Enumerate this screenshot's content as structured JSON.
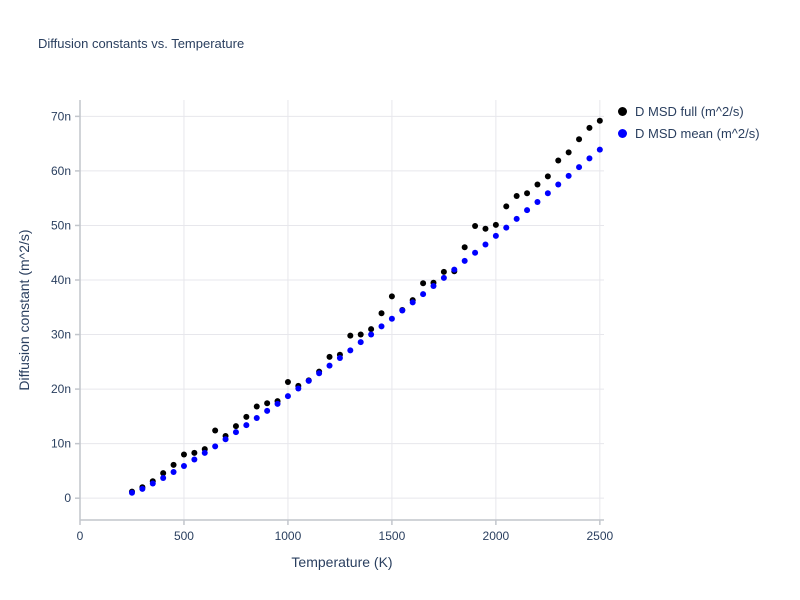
{
  "colors": {
    "text": "#2a3f5f",
    "grid": "#e7e7ec",
    "axis": "#c2c6cc",
    "background": "#ffffff",
    "series_full": "#000000",
    "series_mean": "#0000ff"
  },
  "chart_data": {
    "type": "scatter",
    "title": "Diffusion constants vs. Temperature",
    "xlabel": "Temperature (K)",
    "ylabel": "Diffusion constant (m^2/s)",
    "xlim": [
      0,
      2520
    ],
    "ylim": [
      -4,
      73
    ],
    "grid": true,
    "legend_position": "top-right",
    "x_ticks": {
      "values": [
        0,
        500,
        1000,
        1500,
        2000,
        2500
      ],
      "labels": [
        "0",
        "500",
        "1000",
        "1500",
        "2000",
        "2500"
      ]
    },
    "y_ticks": {
      "values": [
        0,
        10,
        20,
        30,
        40,
        50,
        60,
        70
      ],
      "labels": [
        "0",
        "10n",
        "20n",
        "30n",
        "40n",
        "50n",
        "60n",
        "70n"
      ]
    },
    "y_unit_note": "n",
    "x": [
      250,
      300,
      350,
      400,
      450,
      500,
      550,
      600,
      650,
      700,
      750,
      800,
      850,
      900,
      950,
      1000,
      1050,
      1100,
      1150,
      1200,
      1250,
      1300,
      1350,
      1400,
      1450,
      1500,
      1550,
      1600,
      1650,
      1700,
      1750,
      1800,
      1850,
      1900,
      1950,
      2000,
      2050,
      2100,
      2150,
      2200,
      2250,
      2300,
      2350,
      2400,
      2450,
      2500
    ],
    "series": [
      {
        "name": "D MSD full (m^2/s)",
        "color": "#000000",
        "values": [
          1.2,
          2.0,
          3.1,
          4.6,
          6.1,
          8.0,
          8.3,
          9.0,
          12.4,
          11.4,
          13.2,
          14.9,
          16.8,
          17.4,
          17.8,
          21.3,
          20.6,
          21.6,
          23.2,
          25.9,
          26.3,
          29.8,
          30.0,
          31.0,
          33.9,
          37.0,
          34.5,
          36.3,
          39.4,
          39.5,
          41.5,
          41.6,
          46.0,
          49.9,
          49.4,
          50.1,
          53.5,
          55.4,
          55.9,
          57.5,
          59.0,
          61.9,
          63.4,
          65.8,
          67.9,
          69.2
        ]
      },
      {
        "name": "D MSD mean (m^2/s)",
        "color": "#0000ff",
        "values": [
          1.0,
          1.7,
          2.7,
          3.7,
          4.8,
          5.9,
          7.1,
          8.3,
          9.5,
          10.8,
          12.1,
          13.4,
          14.7,
          16.0,
          17.3,
          18.7,
          20.1,
          21.5,
          22.9,
          24.3,
          25.7,
          27.1,
          28.6,
          30.0,
          31.5,
          32.9,
          34.4,
          35.9,
          37.4,
          38.9,
          40.4,
          41.9,
          43.5,
          45.0,
          46.5,
          48.1,
          49.6,
          51.2,
          52.8,
          54.3,
          55.9,
          57.5,
          59.1,
          60.7,
          62.3,
          63.9
        ]
      }
    ]
  }
}
